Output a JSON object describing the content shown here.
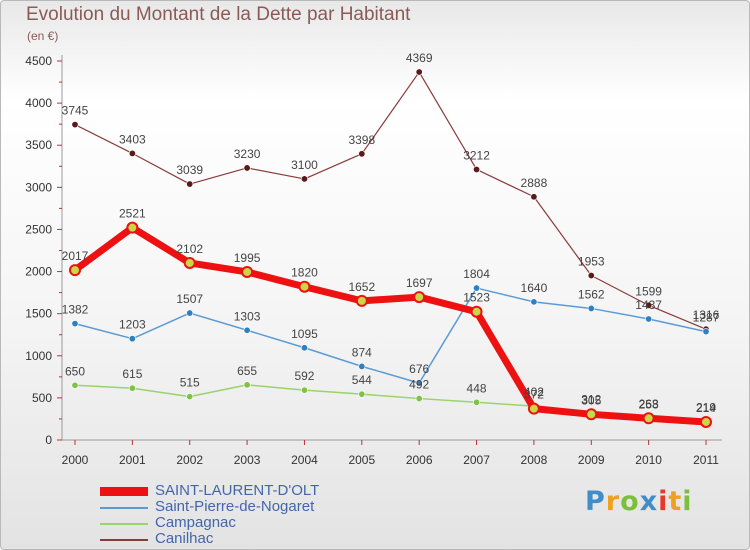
{
  "title": "Evolution du Montant de la Dette par Habitant",
  "subtitle": "(en €)",
  "logo": {
    "text": "Proxiti",
    "letter_colors": [
      "#3f8ec9",
      "#f0a020",
      "#7cbf3a",
      "#3f8ec9",
      "#e5392a",
      "#f0a020",
      "#7cbf3a"
    ]
  },
  "chart_data": {
    "type": "line",
    "title": "Evolution du Montant de la Dette par Habitant",
    "subtitle": "(en €)",
    "x": [
      "2000",
      "2001",
      "2002",
      "2003",
      "2004",
      "2005",
      "2006",
      "2007",
      "2008",
      "2009",
      "2010",
      "2011"
    ],
    "ylim": [
      0,
      4500
    ],
    "yticks": [
      0,
      500,
      1000,
      1500,
      2000,
      2500,
      3000,
      3500,
      4000,
      4500
    ],
    "grid": false,
    "legend_position": "bottom-left",
    "series": [
      {
        "name": "SAINT-LAURENT-D'OLT",
        "color": "#ee1111",
        "values": [
          2017,
          2521,
          2102,
          1995,
          1820,
          1652,
          1697,
          1523,
          372,
          305,
          258,
          214
        ]
      },
      {
        "name": "Saint-Pierre-de-Nogaret",
        "color": "#5b9bd5",
        "values": [
          1382,
          1203,
          1507,
          1303,
          1095,
          874,
          676,
          1804,
          1640,
          1562,
          1437,
          1287
        ]
      },
      {
        "name": "Campagnac",
        "color": "#99d36a",
        "values": [
          650,
          615,
          515,
          655,
          592,
          544,
          492,
          448,
          402,
          312,
          263,
          219
        ]
      },
      {
        "name": "Canilhac",
        "color": "#8b3a3a",
        "values": [
          3745,
          3403,
          3039,
          3230,
          3100,
          3398,
          4369,
          3212,
          2888,
          1953,
          1599,
          1316
        ]
      }
    ]
  }
}
